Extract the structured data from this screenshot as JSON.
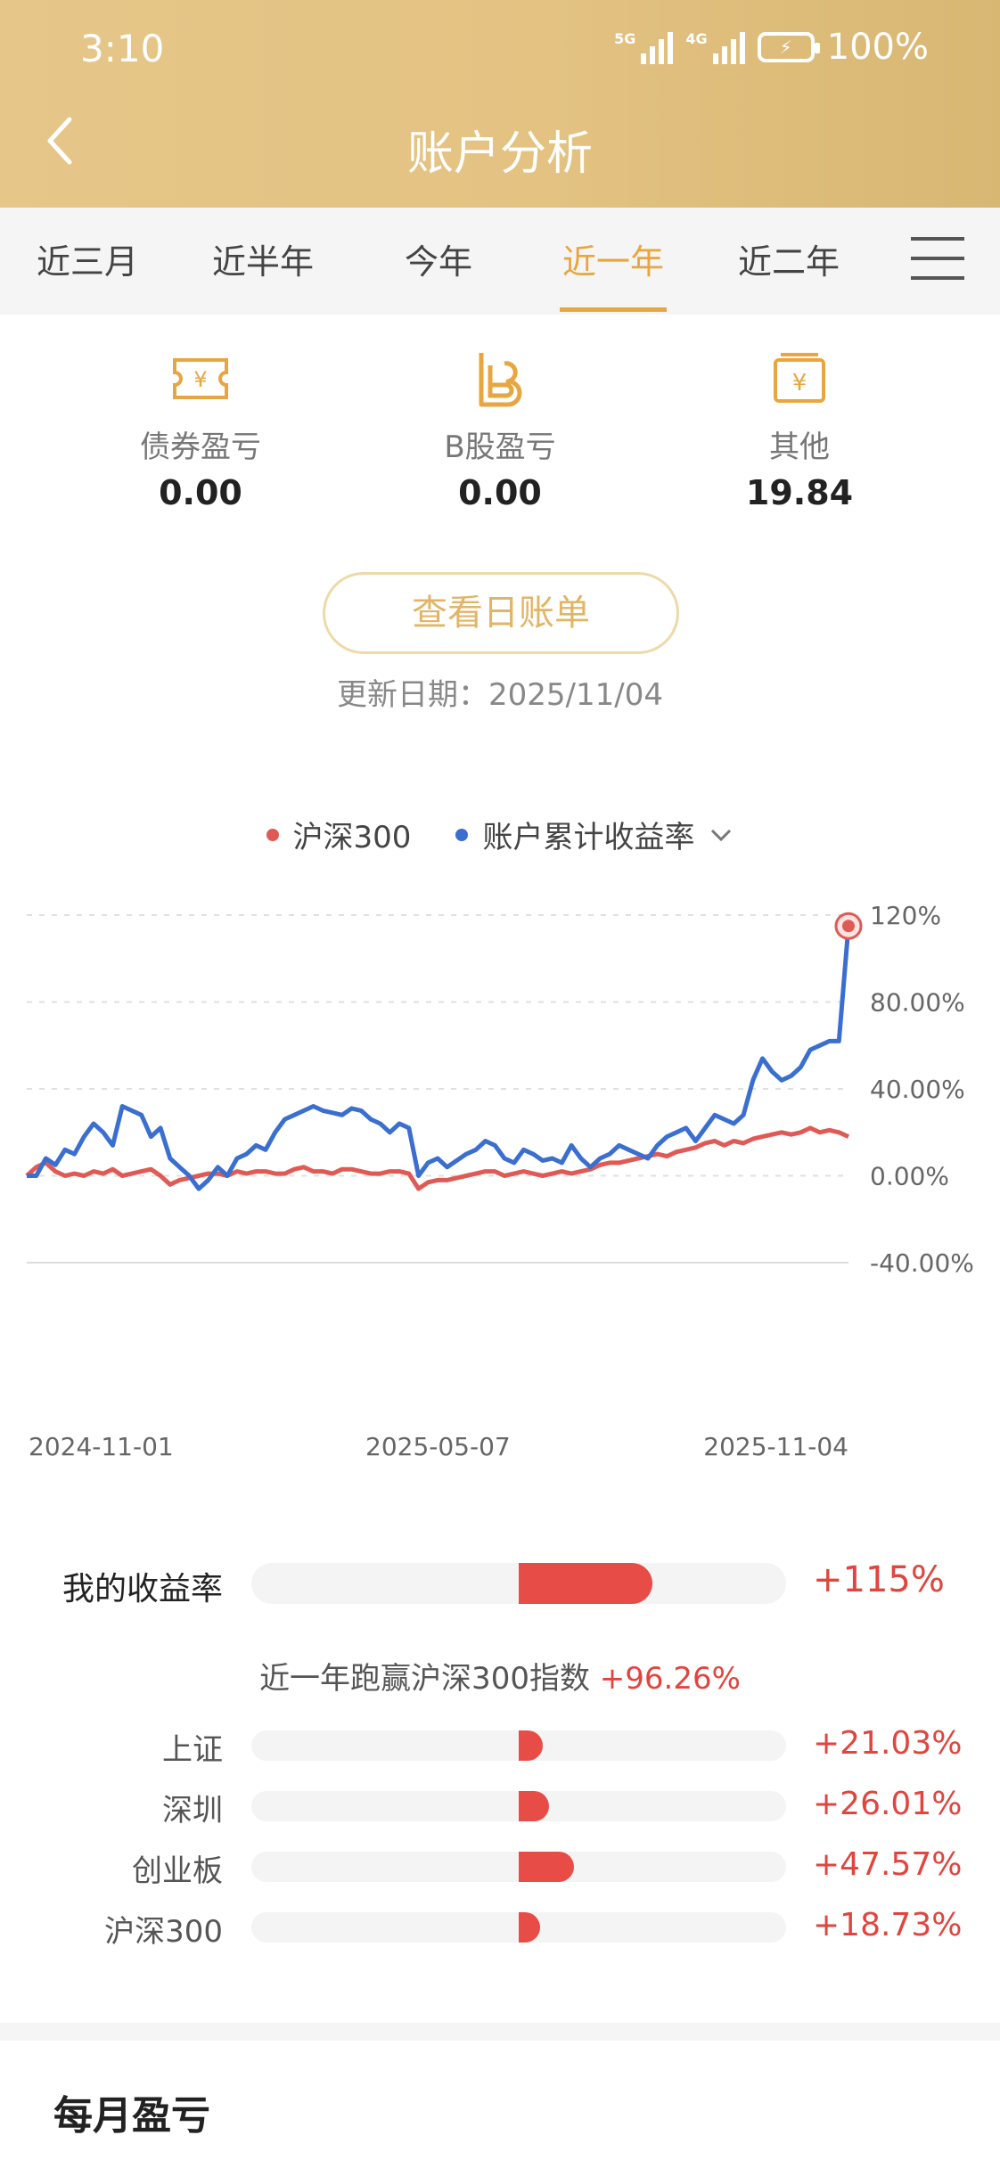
{
  "status": {
    "time": "3:10",
    "net1": "5G",
    "net2": "4G",
    "battery": "100%"
  },
  "header": {
    "title": "账户分析"
  },
  "tabs": [
    "近三月",
    "近半年",
    "今年",
    "近一年",
    "近二年"
  ],
  "active_tab": "近一年",
  "stats": [
    {
      "label": "债券盈亏",
      "value": "0.00",
      "icon": "bond-ticket-icon"
    },
    {
      "label": "B股盈亏",
      "value": "0.00",
      "icon": "b-share-icon"
    },
    {
      "label": "其他",
      "value": "19.84",
      "icon": "yen-box-icon"
    }
  ],
  "bill_button": "查看日账单",
  "update_date": "更新日期：2025/11/04",
  "legend": {
    "index": "沪深300",
    "account": "账户累计收益率"
  },
  "colors": {
    "index": "#e05a55",
    "account": "#3a6fd0",
    "accent": "#e8a640",
    "positive": "#e0453f"
  },
  "chart_data": {
    "type": "line",
    "x_ticks": [
      "2024-11-01",
      "2025-05-07",
      "2025-11-04"
    ],
    "y_ticks": [
      "120%",
      "80.00%",
      "40.00%",
      "0.00%",
      "-40.00%"
    ],
    "ylim": [
      -40,
      120
    ],
    "series": [
      {
        "name": "账户累计收益率",
        "values": [
          0,
          0,
          8,
          5,
          12,
          10,
          18,
          24,
          20,
          14,
          32,
          30,
          28,
          18,
          22,
          8,
          4,
          0,
          -6,
          -2,
          4,
          0,
          8,
          10,
          14,
          12,
          20,
          26,
          28,
          30,
          32,
          30,
          29,
          28,
          31,
          30,
          26,
          24,
          20,
          24,
          22,
          0,
          6,
          8,
          4,
          7,
          10,
          12,
          16,
          14,
          8,
          6,
          12,
          10,
          7,
          8,
          6,
          14,
          8,
          4,
          8,
          10,
          14,
          12,
          10,
          8,
          14,
          18,
          20,
          22,
          16,
          22,
          28,
          26,
          24,
          28,
          44,
          54,
          48,
          44,
          46,
          50,
          58,
          60,
          62,
          62,
          115
        ]
      },
      {
        "name": "沪深300",
        "values": [
          0,
          4,
          6,
          2,
          0,
          1,
          0,
          2,
          1,
          3,
          0,
          1,
          2,
          3,
          0,
          -4,
          -2,
          -1,
          0,
          1,
          1,
          0,
          2,
          1,
          2,
          2,
          1,
          1,
          3,
          4,
          2,
          2,
          1,
          3,
          3,
          2,
          1,
          1,
          2,
          2,
          1,
          -6,
          -3,
          -2,
          -2,
          -1,
          0,
          1,
          2,
          2,
          0,
          1,
          2,
          1,
          0,
          1,
          2,
          1,
          2,
          3,
          5,
          6,
          6,
          7,
          8,
          9,
          10,
          9,
          11,
          12,
          13,
          15,
          16,
          14,
          16,
          15,
          17,
          18,
          19,
          20,
          19,
          20,
          22,
          20,
          21,
          20,
          18
        ]
      }
    ]
  },
  "comparison": {
    "mine": {
      "label": "我的收益率",
      "value": "+115%",
      "pct": 115
    },
    "beat_text": "近一年跑赢沪深300指数",
    "beat_value": "+96.26%",
    "indices": [
      {
        "label": "上证",
        "value": "+21.03%",
        "pct": 21.03
      },
      {
        "label": "深圳",
        "value": "+26.01%",
        "pct": 26.01
      },
      {
        "label": "创业板",
        "value": "+47.57%",
        "pct": 47.57
      },
      {
        "label": "沪深300",
        "value": "+18.73%",
        "pct": 18.73
      }
    ]
  },
  "monthly_title": "每月盈亏"
}
